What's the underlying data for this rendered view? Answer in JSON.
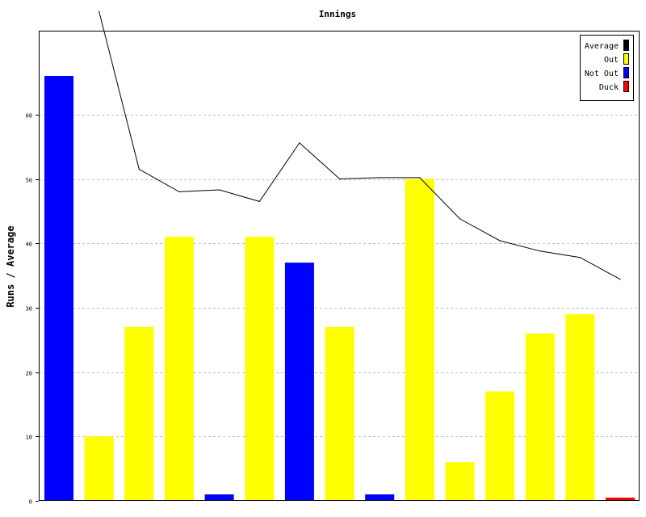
{
  "chart_data": {
    "type": "bar",
    "title": "Innings",
    "xlabel": "",
    "ylabel": "Runs / Average",
    "ylim": [
      0,
      73
    ],
    "yticks": [
      0,
      10,
      20,
      30,
      40,
      50,
      60
    ],
    "grid": true,
    "legend_position": "top-right",
    "legend": [
      {
        "name": "Average",
        "color": "#000000"
      },
      {
        "name": "Out",
        "color": "#ffff00"
      },
      {
        "name": "Not Out",
        "color": "#0000ff"
      },
      {
        "name": "Duck",
        "color": "#ff0000"
      }
    ],
    "bars": [
      {
        "value": 66,
        "type": "Not Out"
      },
      {
        "value": 10,
        "type": "Out"
      },
      {
        "value": 27,
        "type": "Out"
      },
      {
        "value": 41,
        "type": "Out"
      },
      {
        "value": 1,
        "type": "Not Out"
      },
      {
        "value": 41,
        "type": "Out"
      },
      {
        "value": 37,
        "type": "Not Out"
      },
      {
        "value": 27,
        "type": "Out"
      },
      {
        "value": 1,
        "type": "Not Out"
      },
      {
        "value": 50,
        "type": "Out"
      },
      {
        "value": 6,
        "type": "Out"
      },
      {
        "value": 17,
        "type": "Out"
      },
      {
        "value": 26,
        "type": "Out"
      },
      {
        "value": 29,
        "type": "Out"
      },
      {
        "value": 0.5,
        "type": "Duck"
      }
    ],
    "average_line": [
      null,
      76,
      51.5,
      48.0,
      48.3,
      46.5,
      55.6,
      50.0,
      50.2,
      50.2,
      43.8,
      40.4,
      38.8,
      37.8,
      34.4
    ]
  }
}
